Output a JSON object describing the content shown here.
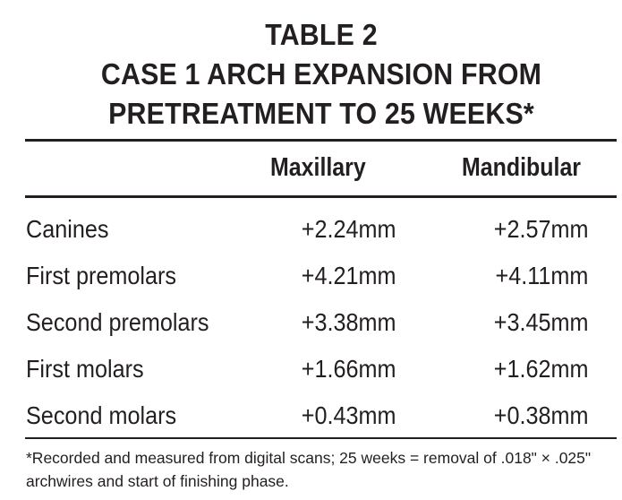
{
  "title": {
    "line1": "TABLE 2",
    "line2": "CASE 1 ARCH EXPANSION FROM",
    "line3": "PRETREATMENT TO 25 WEEKS*"
  },
  "table": {
    "columns": [
      "",
      "Maxillary",
      "Mandibular"
    ],
    "rows": [
      {
        "label": "Canines",
        "maxillary": "+2.24mm",
        "mandibular": "+2.57mm"
      },
      {
        "label": "First premolars",
        "maxillary": "+4.21mm",
        "mandibular": "+4.11mm"
      },
      {
        "label": "Second premolars",
        "maxillary": "+3.38mm",
        "mandibular": "+3.45mm"
      },
      {
        "label": "First molars",
        "maxillary": "+1.66mm",
        "mandibular": "+1.62mm"
      },
      {
        "label": "Second molars",
        "maxillary": "+0.43mm",
        "mandibular": "+0.38mm"
      }
    ]
  },
  "footnote": "*Recorded and measured from digital scans; 25 weeks = removal of .018\" × .025\" archwires and start of finishing phase."
}
